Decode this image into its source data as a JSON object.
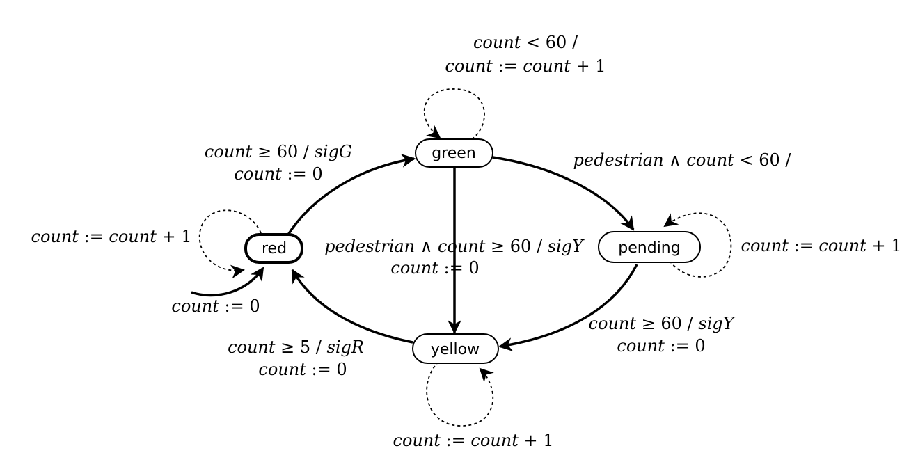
{
  "states": {
    "green": "green",
    "red": "red",
    "pending": "pending",
    "yellow": "yellow"
  },
  "labels": {
    "green_self_guard": [
      "count",
      " < 60 /"
    ],
    "green_self_action": [
      "count",
      " := ",
      "count",
      " + 1"
    ],
    "red_to_green_guard": [
      "count",
      " ≥ 60 / ",
      "sigG"
    ],
    "red_to_green_action": [
      "count",
      " := 0"
    ],
    "green_to_pending": [
      "pedestrian",
      " ∧ ",
      "count",
      " < 60 /"
    ],
    "red_self": [
      "count",
      " := ",
      "count",
      " + 1"
    ],
    "green_to_yellow_guard": [
      "pedestrian",
      " ∧ ",
      "count",
      " ≥ 60 / ",
      "sigY"
    ],
    "green_to_yellow_action": [
      "count",
      " := 0"
    ],
    "pending_self": [
      "count",
      " := ",
      "count",
      " + 1"
    ],
    "initial": [
      "count",
      " := 0"
    ],
    "pending_to_yellow_guard": [
      "count",
      " ≥ 60 / ",
      "sigY"
    ],
    "pending_to_yellow_action": [
      "count",
      " := 0"
    ],
    "yellow_to_red_guard": [
      "count",
      " ≥ 5 / ",
      "sigR"
    ],
    "yellow_to_red_action": [
      "count",
      " := 0"
    ],
    "yellow_self": [
      "count",
      " := ",
      "count",
      " + 1"
    ]
  }
}
